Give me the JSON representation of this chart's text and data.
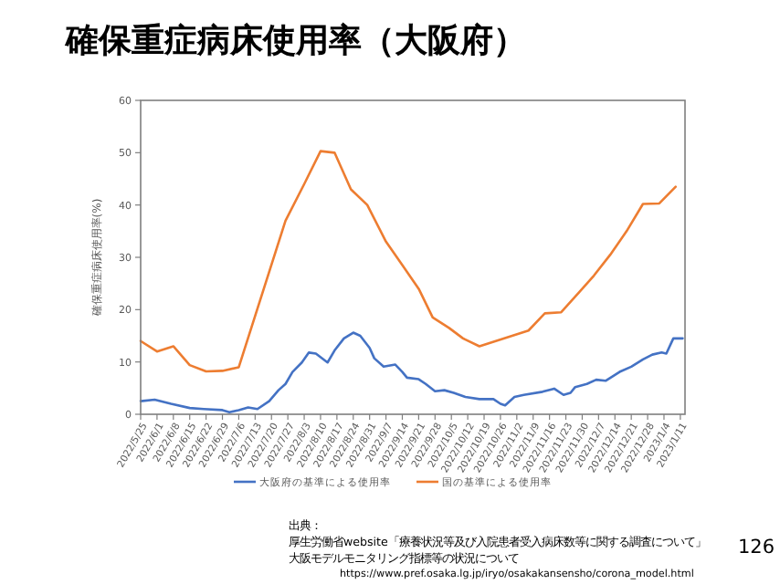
{
  "chart_data": {
    "type": "line",
    "title": "確保重症病床使用率（大阪府）",
    "ylabel": "確保重症病床使用率(%)",
    "xlim": [
      "2022-05-25",
      "2023-01-13"
    ],
    "xticks": [
      {
        "value": "2022-05-25",
        "label": "2022/5/25"
      },
      {
        "value": "2022-06-01",
        "label": "2022/6/1"
      },
      {
        "value": "2022-06-08",
        "label": "2022/6/8"
      },
      {
        "value": "2022-06-15",
        "label": "2022/6/15"
      },
      {
        "value": "2022-06-22",
        "label": "2022/6/22"
      },
      {
        "value": "2022-06-29",
        "label": "2022/6/29"
      },
      {
        "value": "2022-07-06",
        "label": "2022/7/6"
      },
      {
        "value": "2022-07-13",
        "label": "2022/7/13"
      },
      {
        "value": "2022-07-20",
        "label": "2022/7/20"
      },
      {
        "value": "2022-07-27",
        "label": "2022/7/27"
      },
      {
        "value": "2022-08-03",
        "label": "2022/8/3"
      },
      {
        "value": "2022-08-10",
        "label": "2022/8/10"
      },
      {
        "value": "2022-08-17",
        "label": "2022/8/17"
      },
      {
        "value": "2022-08-24",
        "label": "2022/8/24"
      },
      {
        "value": "2022-08-31",
        "label": "2022/8/31"
      },
      {
        "value": "2022-09-07",
        "label": "2022/9/7"
      },
      {
        "value": "2022-09-14",
        "label": "2022/9/14"
      },
      {
        "value": "2022-09-21",
        "label": "2022/9/21"
      },
      {
        "value": "2022-09-28",
        "label": "2022/9/28"
      },
      {
        "value": "2022-10-05",
        "label": "2022/10/5"
      },
      {
        "value": "2022-10-12",
        "label": "2022/10/12"
      },
      {
        "value": "2022-10-19",
        "label": "2022/10/19"
      },
      {
        "value": "2022-10-26",
        "label": "2022/10/26"
      },
      {
        "value": "2022-11-02",
        "label": "2022/11/2"
      },
      {
        "value": "2022-11-09",
        "label": "2022/11/9"
      },
      {
        "value": "2022-11-16",
        "label": "2022/11/16"
      },
      {
        "value": "2022-11-23",
        "label": "2022/11/23"
      },
      {
        "value": "2022-11-30",
        "label": "2022/11/30"
      },
      {
        "value": "2022-12-07",
        "label": "2022/12/7"
      },
      {
        "value": "2022-12-14",
        "label": "2022/12/14"
      },
      {
        "value": "2022-12-21",
        "label": "2022/12/21"
      },
      {
        "value": "2022-12-28",
        "label": "2022/12/28"
      },
      {
        "value": "2023-01-04",
        "label": "2023/1/4"
      },
      {
        "value": "2023-01-11",
        "label": "2023/1/11"
      }
    ],
    "ylim": [
      0,
      60
    ],
    "yticks": [
      0,
      10,
      20,
      30,
      40,
      50,
      60
    ],
    "grid": false,
    "legend": "bottom",
    "line_style": "solid",
    "marker": "none",
    "series": [
      {
        "name": "大阪府の基準による使用率",
        "color": "#4472c4",
        "x": [
          "2022-05-25",
          "2022-05-31",
          "2022-06-07",
          "2022-06-15",
          "2022-06-21",
          "2022-06-29",
          "2022-07-02",
          "2022-07-06",
          "2022-07-10",
          "2022-07-14",
          "2022-07-19",
          "2022-07-23",
          "2022-07-26",
          "2022-07-29",
          "2022-08-02",
          "2022-08-05",
          "2022-08-08",
          "2022-08-13",
          "2022-08-16",
          "2022-08-20",
          "2022-08-24",
          "2022-08-27",
          "2022-08-31",
          "2022-09-02",
          "2022-09-06",
          "2022-09-11",
          "2022-09-14",
          "2022-09-16",
          "2022-09-21",
          "2022-09-24",
          "2022-09-28",
          "2022-10-02",
          "2022-10-06",
          "2022-10-11",
          "2022-10-17",
          "2022-10-23",
          "2022-10-26",
          "2022-10-28",
          "2022-11-01",
          "2022-11-05",
          "2022-11-13",
          "2022-11-18",
          "2022-11-22",
          "2022-11-25",
          "2022-11-27",
          "2022-12-02",
          "2022-12-06",
          "2022-12-10",
          "2022-12-16",
          "2022-12-21",
          "2022-12-26",
          "2022-12-30",
          "2023-01-03",
          "2023-01-05",
          "2023-01-08",
          "2023-01-12"
        ],
        "values": [
          2.5,
          2.8,
          2.0,
          1.2,
          1.0,
          0.8,
          0.4,
          0.8,
          1.3,
          1.0,
          2.5,
          4.6,
          5.8,
          8.1,
          9.9,
          11.8,
          11.6,
          9.9,
          12.2,
          14.5,
          15.6,
          15.0,
          12.7,
          10.7,
          9.1,
          9.5,
          8.1,
          7.0,
          6.7,
          5.8,
          4.4,
          4.6,
          4.1,
          3.3,
          2.9,
          2.9,
          2.0,
          1.7,
          3.3,
          3.7,
          4.3,
          4.9,
          3.7,
          4.1,
          5.2,
          5.8,
          6.6,
          6.4,
          8.1,
          9.1,
          10.5,
          11.4,
          11.8,
          11.6,
          14.5,
          14.5
        ]
      },
      {
        "name": "国の基準による使用率",
        "color": "#ed7d31",
        "x": [
          "2022-05-25",
          "2022-06-01",
          "2022-06-08",
          "2022-06-15",
          "2022-06-22",
          "2022-06-29",
          "2022-07-06",
          "2022-07-26",
          "2022-08-03",
          "2022-08-10",
          "2022-08-16",
          "2022-08-23",
          "2022-08-30",
          "2022-09-07",
          "2022-09-14",
          "2022-09-21",
          "2022-09-27",
          "2022-10-04",
          "2022-10-10",
          "2022-10-17",
          "2022-10-24",
          "2022-10-31",
          "2022-11-07",
          "2022-11-14",
          "2022-11-21",
          "2022-11-29",
          "2022-12-05",
          "2022-12-12",
          "2022-12-19",
          "2022-12-26",
          "2023-01-02",
          "2023-01-09"
        ],
        "values": [
          14,
          12,
          13,
          9.4,
          8.2,
          8.3,
          9.0,
          37,
          44,
          50.3,
          50,
          43,
          40,
          33,
          28.5,
          24,
          18.5,
          16.5,
          14.5,
          13,
          14,
          15,
          16,
          19.3,
          19.5,
          23.5,
          26.5,
          30.5,
          35,
          40.2,
          40.3,
          43.5
        ]
      }
    ],
    "annotations": [
      "出典：",
      "厚生労働省website「療養状況等及び入院患者受入病床数等に関する調査について」",
      "大阪モデルモニタリング指標等の状況について",
      "https://www.pref.osaka.lg.jp/iryo/osakakansensho/corona_model.html",
      "126"
    ]
  }
}
